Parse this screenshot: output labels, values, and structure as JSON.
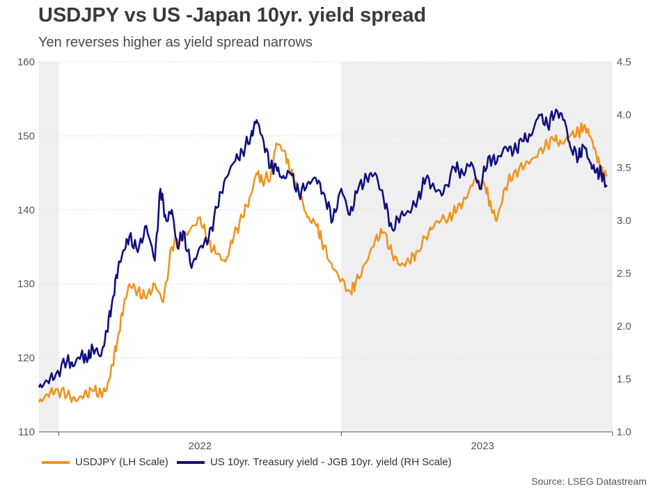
{
  "title": "USDJPY vs US -Japan 10yr. yield spread",
  "subtitle": "Yen reverses higher as yield spread narrows",
  "source": "Source: LSEG Datastream",
  "colors": {
    "usdjpy": "#f0941e",
    "spread": "#0f0f80",
    "shade": "#efefef",
    "grid": "#d0d0d0",
    "axis": "#555555"
  },
  "chart_data": {
    "type": "line",
    "title": "USDJPY vs US -Japan 10yr. yield spread",
    "xlabel": "",
    "x_ticks": [
      "2022",
      "2023"
    ],
    "left_axis": {
      "label": "LH Scale",
      "ylim": [
        110,
        160
      ],
      "ticks": [
        "110",
        "120",
        "130",
        "140",
        "150",
        "160"
      ]
    },
    "right_axis": {
      "label": "RH Scale",
      "ylim": [
        1.0,
        4.5
      ],
      "ticks": [
        "1.0",
        "1.5",
        "2.0",
        "2.5",
        "3.0",
        "3.5",
        "4.0",
        "4.5"
      ]
    },
    "x_range": [
      2021.93,
      2023.96
    ],
    "shaded_periods": [
      [
        2021.93,
        2022.0
      ],
      [
        2023.0,
        2023.96
      ]
    ],
    "series": [
      {
        "name": "USDJPY (LH Scale)",
        "axis": "left",
        "x": [
          2021.93,
          2021.96,
          2021.99,
          2022.03,
          2022.06,
          2022.09,
          2022.12,
          2022.15,
          2022.17,
          2022.19,
          2022.21,
          2022.23,
          2022.25,
          2022.28,
          2022.31,
          2022.34,
          2022.37,
          2022.4,
          2022.43,
          2022.46,
          2022.5,
          2022.53,
          2022.56,
          2022.59,
          2022.62,
          2022.65,
          2022.68,
          2022.7,
          2022.72,
          2022.75,
          2022.77,
          2022.8,
          2022.82,
          2022.85,
          2022.88,
          2022.91,
          2022.93,
          2022.96,
          2022.99,
          2023.03,
          2023.05,
          2023.09,
          2023.12,
          2023.15,
          2023.18,
          2023.21,
          2023.24,
          2023.27,
          2023.31,
          2023.34,
          2023.38,
          2023.41,
          2023.44,
          2023.47,
          2023.51,
          2023.53,
          2023.55,
          2023.58,
          2023.61,
          2023.65,
          2023.68,
          2023.72,
          2023.75,
          2023.78,
          2023.81,
          2023.84,
          2023.86,
          2023.88,
          2023.9,
          2023.92,
          2023.94
        ],
        "values": [
          114.0,
          115.0,
          115.8,
          115.0,
          114.2,
          115.0,
          115.5,
          115.2,
          115.8,
          119.0,
          123.0,
          127.0,
          130.0,
          129.0,
          128.0,
          130.0,
          127.5,
          135.0,
          136.0,
          137.0,
          139.0,
          135.5,
          134.0,
          133.0,
          136.5,
          139.0,
          142.0,
          145.0,
          144.0,
          144.5,
          149.0,
          148.0,
          145.0,
          142.5,
          139.0,
          138.0,
          136.0,
          133.0,
          131.0,
          129.0,
          130.0,
          133.0,
          136.0,
          137.0,
          134.0,
          132.5,
          133.0,
          134.5,
          137.0,
          138.5,
          139.0,
          140.0,
          141.5,
          144.0,
          143.0,
          140.5,
          138.5,
          143.0,
          145.0,
          146.0,
          147.0,
          148.5,
          149.5,
          149.0,
          150.0,
          150.5,
          151.5,
          150.0,
          148.0,
          145.0,
          144.5
        ]
      },
      {
        "name": "US 10yr. Treasury yield - JGB 10yr. yield (RH Scale)",
        "axis": "right",
        "x": [
          2021.93,
          2021.96,
          2021.99,
          2022.03,
          2022.05,
          2022.08,
          2022.1,
          2022.12,
          2022.15,
          2022.17,
          2022.19,
          2022.21,
          2022.23,
          2022.25,
          2022.28,
          2022.31,
          2022.34,
          2022.36,
          2022.38,
          2022.4,
          2022.42,
          2022.44,
          2022.47,
          2022.5,
          2022.53,
          2022.56,
          2022.59,
          2022.62,
          2022.65,
          2022.68,
          2022.7,
          2022.72,
          2022.75,
          2022.77,
          2022.79,
          2022.82,
          2022.85,
          2022.88,
          2022.91,
          2022.94,
          2022.97,
          2023.0,
          2023.03,
          2023.06,
          2023.09,
          2023.12,
          2023.15,
          2023.18,
          2023.21,
          2023.24,
          2023.27,
          2023.3,
          2023.33,
          2023.36,
          2023.4,
          2023.43,
          2023.46,
          2023.49,
          2023.52,
          2023.55,
          2023.58,
          2023.61,
          2023.64,
          2023.67,
          2023.7,
          2023.73,
          2023.76,
          2023.79,
          2023.81,
          2023.84,
          2023.86,
          2023.88,
          2023.9,
          2023.92,
          2023.94
        ],
        "values": [
          1.42,
          1.48,
          1.55,
          1.68,
          1.62,
          1.74,
          1.66,
          1.8,
          1.72,
          1.95,
          2.25,
          2.55,
          2.72,
          2.85,
          2.7,
          2.95,
          2.62,
          3.3,
          3.0,
          3.1,
          2.75,
          2.9,
          2.55,
          2.75,
          2.82,
          3.12,
          3.4,
          3.55,
          3.65,
          3.8,
          3.95,
          3.8,
          3.5,
          3.5,
          3.4,
          3.45,
          3.25,
          3.35,
          3.4,
          3.25,
          3.0,
          3.3,
          3.05,
          3.3,
          3.4,
          3.45,
          3.2,
          2.92,
          3.05,
          3.08,
          3.2,
          3.4,
          3.3,
          3.25,
          3.5,
          3.45,
          3.55,
          3.3,
          3.6,
          3.55,
          3.7,
          3.65,
          3.75,
          3.8,
          4.0,
          3.9,
          4.05,
          3.95,
          3.7,
          3.6,
          3.7,
          3.55,
          3.45,
          3.45,
          3.32
        ]
      }
    ]
  },
  "legend": [
    {
      "label": "USDJPY (LH Scale)",
      "color_key": "usdjpy"
    },
    {
      "label": "US 10yr. Treasury yield - JGB 10yr. yield (RH Scale)",
      "color_key": "spread"
    }
  ]
}
